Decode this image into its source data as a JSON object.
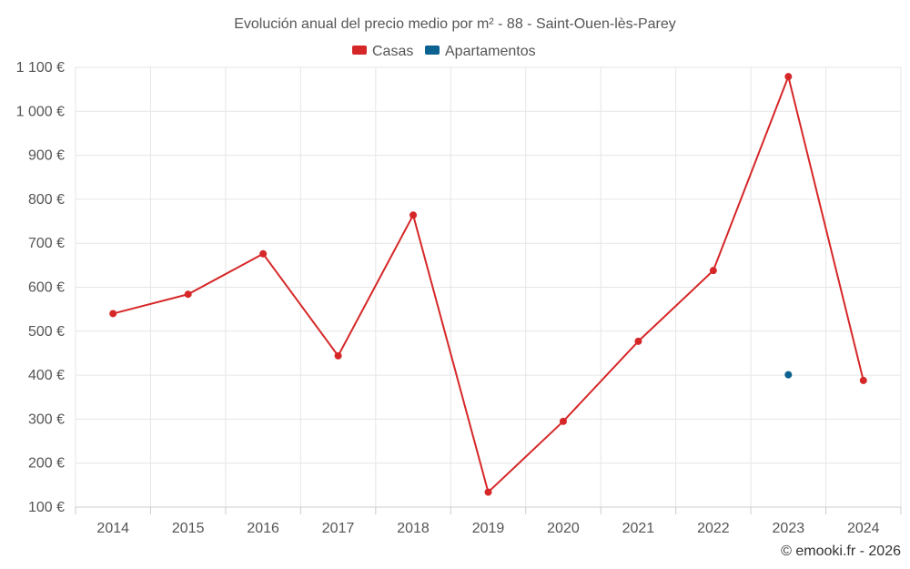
{
  "chart_data": {
    "type": "line",
    "title": "Evolución anual del precio medio por m² - 88 - Saint-Ouen-lès-Parey",
    "categories": [
      "2014",
      "2015",
      "2016",
      "2017",
      "2018",
      "2019",
      "2020",
      "2021",
      "2022",
      "2023",
      "2024"
    ],
    "series": [
      {
        "name": "Casas",
        "color": "#d62728",
        "values": [
          540,
          584,
          676,
          444,
          764,
          134,
          295,
          477,
          638,
          1079,
          388
        ]
      },
      {
        "name": "Apartamentos",
        "color": "#0c6291",
        "values": [
          null,
          null,
          null,
          null,
          null,
          null,
          null,
          null,
          null,
          401,
          null
        ]
      }
    ],
    "ylim": [
      100,
      1100
    ],
    "yticks": [
      100,
      200,
      300,
      400,
      500,
      600,
      700,
      800,
      900,
      1000,
      1100
    ],
    "ytick_labels": [
      "100 €",
      "200 €",
      "300 €",
      "400 €",
      "500 €",
      "600 €",
      "700 €",
      "800 €",
      "900 €",
      "1 000 €",
      "1 100 €"
    ],
    "xlabel": "",
    "ylabel": "",
    "grid": true,
    "legend_position": "top-center"
  },
  "credit": "© emooki.fr - 2026"
}
